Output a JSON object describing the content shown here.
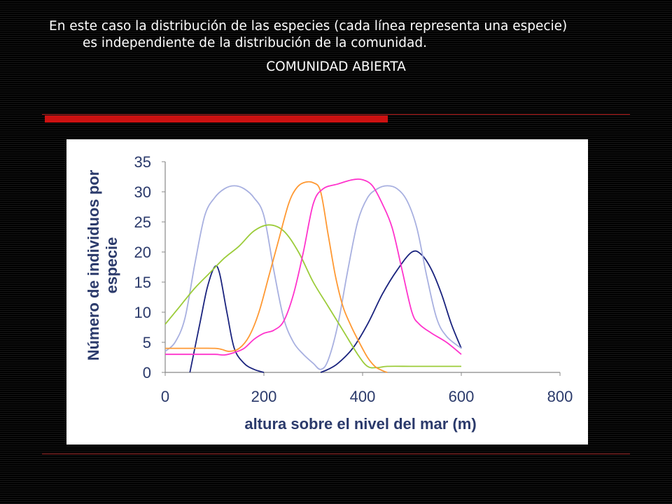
{
  "caption": {
    "line1": "En este caso la distribución de las especies (cada línea representa una especie)",
    "line2": "es independiente  de la distribución de la comunidad."
  },
  "subtitle": "COMUNIDAD ABIERTA",
  "chart_data": {
    "type": "line",
    "title": "",
    "xlabel": "altura sobre el nivel del mar (m)",
    "ylabel": "Número de individuos por especie",
    "xlim": [
      0,
      800
    ],
    "ylim": [
      0,
      35
    ],
    "xticks": [
      0,
      200,
      400,
      600,
      800
    ],
    "yticks": [
      0,
      5,
      10,
      15,
      20,
      25,
      30,
      35
    ],
    "grid": false,
    "legend": "none",
    "series": [
      {
        "color": "#1a237e",
        "points": [
          [
            50,
            0
          ],
          [
            70,
            8
          ],
          [
            85,
            14
          ],
          [
            100,
            17.5
          ],
          [
            110,
            16.5
          ],
          [
            125,
            10
          ],
          [
            140,
            4
          ],
          [
            160,
            1.5
          ],
          [
            180,
            0.5
          ],
          [
            200,
            0
          ]
        ]
      },
      {
        "color": "#1a237e",
        "points": [
          [
            315,
            0
          ],
          [
            330,
            0.5
          ],
          [
            350,
            1.5
          ],
          [
            380,
            4
          ],
          [
            410,
            8
          ],
          [
            440,
            13
          ],
          [
            470,
            17
          ],
          [
            500,
            20
          ],
          [
            520,
            19.5
          ],
          [
            540,
            17
          ],
          [
            560,
            13
          ],
          [
            580,
            8
          ],
          [
            600,
            4
          ]
        ]
      },
      {
        "color": "#a8b0e0",
        "points": [
          [
            0,
            3.5
          ],
          [
            20,
            5
          ],
          [
            40,
            9
          ],
          [
            60,
            18
          ],
          [
            80,
            26
          ],
          [
            100,
            29
          ],
          [
            120,
            30.5
          ],
          [
            140,
            31
          ],
          [
            160,
            30.5
          ],
          [
            180,
            29
          ],
          [
            200,
            26
          ],
          [
            220,
            17
          ],
          [
            240,
            9
          ],
          [
            260,
            5
          ],
          [
            280,
            3
          ],
          [
            300,
            1.5
          ],
          [
            315,
            0.5
          ],
          [
            330,
            2
          ],
          [
            350,
            8
          ],
          [
            370,
            17
          ],
          [
            390,
            25
          ],
          [
            410,
            29
          ],
          [
            430,
            30.5
          ],
          [
            450,
            31
          ],
          [
            470,
            30.5
          ],
          [
            490,
            28.5
          ],
          [
            510,
            24
          ],
          [
            530,
            16
          ],
          [
            550,
            9
          ],
          [
            570,
            6
          ],
          [
            600,
            4
          ]
        ]
      },
      {
        "color": "#9ccc3a",
        "points": [
          [
            0,
            8
          ],
          [
            30,
            11
          ],
          [
            60,
            14
          ],
          [
            90,
            16.5
          ],
          [
            120,
            19
          ],
          [
            150,
            21
          ],
          [
            180,
            23.5
          ],
          [
            210,
            24.5
          ],
          [
            240,
            23.5
          ],
          [
            270,
            20
          ],
          [
            300,
            15
          ],
          [
            330,
            11
          ],
          [
            360,
            7
          ],
          [
            390,
            3
          ],
          [
            410,
            1
          ],
          [
            430,
            0.8
          ],
          [
            450,
            1
          ],
          [
            500,
            1
          ],
          [
            550,
            1
          ],
          [
            600,
            1
          ]
        ]
      },
      {
        "color": "#ff9933",
        "points": [
          [
            0,
            4
          ],
          [
            50,
            4
          ],
          [
            100,
            4
          ],
          [
            115,
            3.8
          ],
          [
            130,
            3.5
          ],
          [
            150,
            4
          ],
          [
            170,
            6
          ],
          [
            190,
            10
          ],
          [
            210,
            16
          ],
          [
            230,
            22
          ],
          [
            250,
            28
          ],
          [
            265,
            30.5
          ],
          [
            280,
            31.5
          ],
          [
            300,
            31.5
          ],
          [
            315,
            30
          ],
          [
            330,
            23
          ],
          [
            345,
            16
          ],
          [
            360,
            11
          ],
          [
            375,
            8
          ],
          [
            390,
            5.5
          ],
          [
            410,
            2.5
          ],
          [
            425,
            1
          ],
          [
            440,
            0.3
          ],
          [
            450,
            0
          ]
        ]
      },
      {
        "color": "#ff33cc",
        "points": [
          [
            0,
            3
          ],
          [
            50,
            3
          ],
          [
            100,
            3
          ],
          [
            120,
            2.9
          ],
          [
            140,
            3.3
          ],
          [
            160,
            4
          ],
          [
            180,
            5.5
          ],
          [
            200,
            6.5
          ],
          [
            220,
            7
          ],
          [
            240,
            8.5
          ],
          [
            260,
            13
          ],
          [
            280,
            20
          ],
          [
            300,
            28
          ],
          [
            320,
            30.5
          ],
          [
            350,
            31.3
          ],
          [
            380,
            32
          ],
          [
            400,
            32
          ],
          [
            420,
            31
          ],
          [
            440,
            28
          ],
          [
            460,
            24
          ],
          [
            480,
            17
          ],
          [
            500,
            10
          ],
          [
            515,
            8
          ],
          [
            540,
            6.5
          ],
          [
            570,
            5
          ],
          [
            600,
            3
          ]
        ]
      }
    ]
  }
}
